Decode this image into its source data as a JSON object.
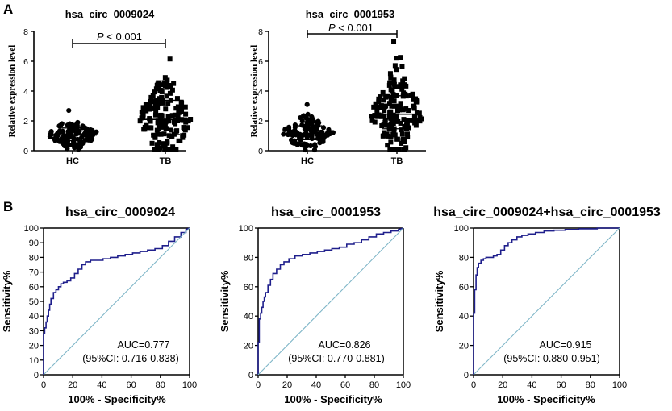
{
  "panel_labels": {
    "a": "A",
    "b": "B"
  },
  "chart_data": [
    {
      "type": "scatter",
      "panel": "A",
      "title": "hsa_circ_0009024",
      "ylabel": "Relative expression level",
      "categories": [
        "HC",
        "TB"
      ],
      "ylim": [
        0,
        8
      ],
      "yticks": [
        0,
        2,
        4,
        6,
        8
      ],
      "p_value": {
        "prefix": "P",
        "text": " < 0.001"
      },
      "groups": [
        {
          "name": "HC",
          "marker": "circle",
          "n": 120,
          "mean": 1.05,
          "sd": 0.5,
          "min": 0.05,
          "max": 2.7
        },
        {
          "name": "TB",
          "marker": "square",
          "n": 160,
          "mean": 2.1,
          "sd": 1.35,
          "min": 0.1,
          "max": 6.15
        }
      ]
    },
    {
      "type": "scatter",
      "panel": "A",
      "title": "hsa_circ_0001953",
      "ylabel": "Relative expression level",
      "categories": [
        "HC",
        "TB"
      ],
      "ylim": [
        0,
        8
      ],
      "yticks": [
        0,
        2,
        4,
        6,
        8
      ],
      "p_value": {
        "prefix": "P",
        "text": " < 0.001"
      },
      "groups": [
        {
          "name": "HC",
          "marker": "circle",
          "n": 120,
          "mean": 1.15,
          "sd": 0.55,
          "min": 0.05,
          "max": 3.1
        },
        {
          "name": "TB",
          "marker": "square",
          "n": 160,
          "mean": 2.45,
          "sd": 1.3,
          "min": 0.1,
          "max": 7.3
        }
      ]
    },
    {
      "type": "line",
      "panel": "B",
      "title": "hsa_circ_0009024",
      "xlabel": "100% - Specificity%",
      "ylabel": "Sensitivity%",
      "xlim": [
        0,
        100
      ],
      "ylim": [
        0,
        100
      ],
      "xticks": [
        0,
        20,
        40,
        60,
        80,
        100
      ],
      "yticks": [
        0,
        10,
        20,
        30,
        40,
        50,
        60,
        70,
        80,
        90,
        100
      ],
      "auc_text": "AUC=0.777",
      "ci_text": "(95%CI: 0.716-0.838)",
      "series": [
        {
          "name": "ROC",
          "color": "#1f1f8c",
          "x": [
            0,
            0,
            0.8,
            0.8,
            1.7,
            1.7,
            2.5,
            2.5,
            3.4,
            3.4,
            4.2,
            4.2,
            5.1,
            5.1,
            6.8,
            6.8,
            8.5,
            8.5,
            10.2,
            10.2,
            11.9,
            11.9,
            13.6,
            13.6,
            16.1,
            16.1,
            18.6,
            18.6,
            21.2,
            21.2,
            23.7,
            23.7,
            26.3,
            26.3,
            28.8,
            28.8,
            32.2,
            32.2,
            35.6,
            35.6,
            40.7,
            40.7,
            45.8,
            45.8,
            50.8,
            50.8,
            55.9,
            55.9,
            61.0,
            61.0,
            66.1,
            66.1,
            71.2,
            71.2,
            76.3,
            76.3,
            81.4,
            81.4,
            85.6,
            85.6,
            89.8,
            89.8,
            94.1,
            94.1,
            97.5,
            97.5,
            100
          ],
          "y": [
            0,
            28,
            28,
            32,
            32,
            36,
            36,
            40,
            40,
            44,
            44,
            48,
            48,
            52,
            52,
            56,
            56,
            58,
            58,
            60,
            60,
            62,
            62,
            63,
            63,
            64,
            64,
            66,
            66,
            69,
            69,
            72,
            72,
            75,
            75,
            77,
            77,
            78,
            78,
            78,
            78,
            79,
            79,
            80,
            80,
            81,
            81,
            82,
            82,
            83,
            83,
            84,
            84,
            85,
            85,
            86,
            86,
            88,
            88,
            91,
            91,
            94,
            94,
            97,
            97,
            99,
            100
          ]
        },
        {
          "name": "Reference",
          "color": "#7fb6c8",
          "x": [
            0,
            100
          ],
          "y": [
            0,
            100
          ]
        }
      ]
    },
    {
      "type": "line",
      "panel": "B",
      "title": "hsa_circ_0001953",
      "xlabel": "100% - Specificity%",
      "ylabel": "Sensitivity%",
      "xlim": [
        0,
        100
      ],
      "ylim": [
        0,
        100
      ],
      "xticks": [
        0,
        20,
        40,
        60,
        80,
        100
      ],
      "yticks": [
        0,
        20,
        40,
        60,
        80,
        100
      ],
      "auc_text": "AUC=0.826",
      "ci_text": "(95%CI: 0.770-0.881)",
      "series": [
        {
          "name": "ROC",
          "color": "#1f1f8c",
          "x": [
            0,
            0,
            0.8,
            0.8,
            1.7,
            1.7,
            2.5,
            2.5,
            3.4,
            3.4,
            4.2,
            4.2,
            5.1,
            5.1,
            6.8,
            6.8,
            8.5,
            8.5,
            10.2,
            10.2,
            12.7,
            12.7,
            15.3,
            15.3,
            17.8,
            17.8,
            21.2,
            21.2,
            25.4,
            25.4,
            30.5,
            30.5,
            35.6,
            35.6,
            40.7,
            40.7,
            45.8,
            45.8,
            50.8,
            50.8,
            55.9,
            55.9,
            61.0,
            61.0,
            66.1,
            66.1,
            71.2,
            71.2,
            76.3,
            76.3,
            81.4,
            81.4,
            86.4,
            86.4,
            91.5,
            91.5,
            96.6,
            96.6,
            100
          ],
          "y": [
            0,
            22,
            22,
            38,
            38,
            42,
            42,
            46,
            46,
            50,
            50,
            53,
            53,
            56,
            56,
            61,
            61,
            65,
            65,
            69,
            69,
            72,
            72,
            75,
            75,
            77,
            77,
            79,
            79,
            81,
            81,
            82,
            82,
            83,
            83,
            84,
            84,
            85,
            85,
            86,
            86,
            87,
            87,
            89,
            89,
            90,
            90,
            92,
            92,
            94,
            94,
            96,
            96,
            97,
            97,
            98,
            98,
            99,
            100
          ]
        },
        {
          "name": "Reference",
          "color": "#7fb6c8",
          "x": [
            0,
            100
          ],
          "y": [
            0,
            100
          ]
        }
      ]
    },
    {
      "type": "line",
      "panel": "B",
      "title": "hsa_circ_0009024+hsa_circ_0001953",
      "xlabel": "100% - Specificity%",
      "ylabel": "Sensitivity%",
      "xlim": [
        0,
        100
      ],
      "ylim": [
        0,
        100
      ],
      "xticks": [
        0,
        20,
        40,
        60,
        80,
        100
      ],
      "yticks": [
        0,
        20,
        40,
        60,
        80,
        100
      ],
      "auc_text": "AUC=0.915",
      "ci_text": "(95%CI: 0.880-0.951)",
      "series": [
        {
          "name": "ROC",
          "color": "#1f1f8c",
          "x": [
            0,
            0,
            0.8,
            0.8,
            1.7,
            1.7,
            2.5,
            2.5,
            3.4,
            3.4,
            5.1,
            5.1,
            6.8,
            6.8,
            8.5,
            8.5,
            11.0,
            11.0,
            13.6,
            13.6,
            16.1,
            16.1,
            18.6,
            18.6,
            21.2,
            21.2,
            23.7,
            23.7,
            26.3,
            26.3,
            29.7,
            29.7,
            33.1,
            33.1,
            37.3,
            37.3,
            42.4,
            42.4,
            48.3,
            48.3,
            55.1,
            55.1,
            62.7,
            62.7,
            72.0,
            72.0,
            84.7,
            84.7,
            100
          ],
          "y": [
            0,
            42,
            42,
            58,
            58,
            68,
            68,
            73,
            73,
            76,
            76,
            78,
            78,
            79,
            79,
            80,
            80,
            80,
            80,
            81,
            81,
            82,
            82,
            85,
            85,
            88,
            88,
            90,
            90,
            92,
            92,
            94,
            94,
            95,
            95,
            96,
            96,
            97,
            97,
            98,
            98,
            98.5,
            98.5,
            99,
            99,
            99.5,
            99.5,
            100,
            100
          ]
        },
        {
          "name": "Reference",
          "color": "#7fb6c8",
          "x": [
            0,
            100
          ],
          "y": [
            0,
            100
          ]
        }
      ]
    }
  ]
}
